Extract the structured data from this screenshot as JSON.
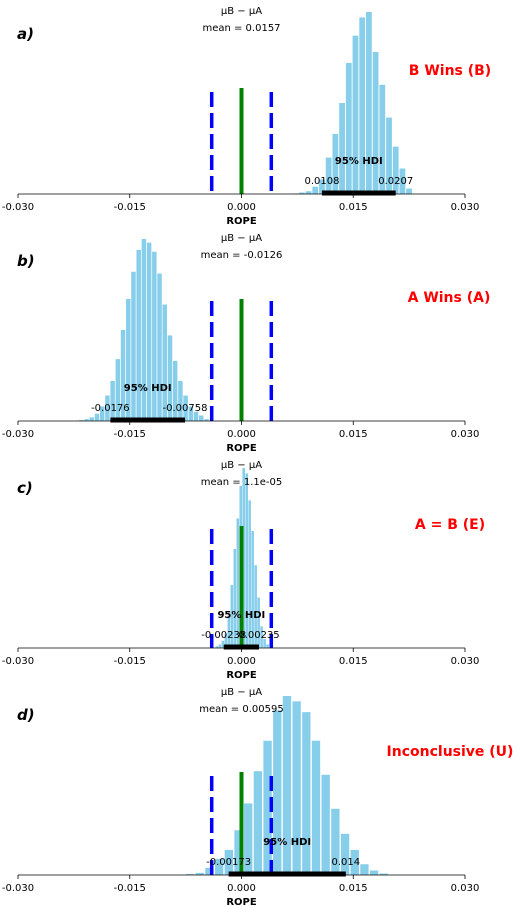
{
  "colors": {
    "bars": "#87CEEB",
    "rope": "#0000FF",
    "zero": "#008000",
    "hdi": "#000000",
    "verdict": "#FF0000"
  },
  "chart_data": [
    {
      "type": "bar",
      "panel_label": "a)",
      "title": "μB − μA",
      "subtitle": "mean = 0.0157",
      "xlabel": "ROPE",
      "xlim": [
        -0.03,
        0.03
      ],
      "xticks": [
        "-0.030",
        "-0.015",
        "0.000",
        "0.015",
        "0.030"
      ],
      "rope": [
        -0.004,
        0.004
      ],
      "zero_line": 0.0,
      "hdi_label": "95% HDI",
      "hdi": [
        0.0108,
        0.0207
      ],
      "hdi_low_label": "0.0108",
      "hdi_high_label": "0.0207",
      "verdict": "B Wins (B)",
      "hist": {
        "bin_centers": [
          0.0072,
          0.0081,
          0.009,
          0.0099,
          0.0108,
          0.0117,
          0.0126,
          0.0135,
          0.0144,
          0.0153,
          0.0162,
          0.0171,
          0.018,
          0.0189,
          0.0198,
          0.0207,
          0.0216,
          0.0225
        ],
        "heights": [
          0.3,
          0.8,
          1.5,
          4,
          8,
          20,
          33,
          50,
          72,
          87,
          97,
          100,
          78,
          60,
          42,
          26,
          14,
          3
        ]
      }
    },
    {
      "type": "bar",
      "panel_label": "b)",
      "title": "μB − μA",
      "subtitle": "mean = -0.0126",
      "xlabel": "ROPE",
      "xlim": [
        -0.03,
        0.03
      ],
      "xticks": [
        "-0.030",
        "-0.015",
        "0.000",
        "0.015",
        "0.030"
      ],
      "rope": [
        -0.004,
        0.004
      ],
      "zero_line": 0.0,
      "hdi_label": "95% HDI",
      "hdi": [
        -0.0176,
        -0.00758
      ],
      "hdi_low_label": "-0.0176",
      "hdi_high_label": "-0.00758",
      "verdict": "A Wins (A)",
      "hist": {
        "bin_centers": [
          -0.0215,
          -0.0208,
          -0.0201,
          -0.0194,
          -0.0187,
          -0.018,
          -0.0173,
          -0.0166,
          -0.0159,
          -0.0152,
          -0.0145,
          -0.0138,
          -0.0131,
          -0.0124,
          -0.0117,
          -0.011,
          -0.0103,
          -0.0096,
          -0.0089,
          -0.0082,
          -0.0075,
          -0.0068,
          -0.0061,
          -0.0054,
          -0.0047
        ],
        "heights": [
          0.5,
          1,
          2,
          4,
          8,
          14,
          22,
          34,
          50,
          67,
          82,
          94,
          100,
          98,
          93,
          81,
          64,
          47,
          33,
          22,
          14,
          8,
          5,
          3,
          1
        ]
      }
    },
    {
      "type": "bar",
      "panel_label": "c)",
      "title": "μB − μA",
      "subtitle": "mean = 1.1e-05",
      "xlabel": "ROPE",
      "xlim": [
        -0.03,
        0.03
      ],
      "xticks": [
        "-0.030",
        "-0.015",
        "0.000",
        "0.015",
        "0.030"
      ],
      "rope": [
        -0.004,
        0.004
      ],
      "zero_line": 0.0,
      "hdi_label": "95% HDI",
      "hdi": [
        -0.00238,
        0.00235
      ],
      "hdi_low_label": "-0.00238",
      "hdi_high_label": "0.00235",
      "verdict": "A = B (E)",
      "hist": {
        "bin_centers": [
          -0.0033,
          -0.0029,
          -0.0025,
          -0.0021,
          -0.0017,
          -0.0013,
          -0.0009,
          -0.0005,
          -0.0001,
          0.0003,
          0.0007,
          0.0011,
          0.0015,
          0.0019,
          0.0023,
          0.0027,
          0.0031,
          0.0035
        ],
        "heights": [
          1,
          2,
          4,
          8,
          17,
          35,
          55,
          72,
          90,
          100,
          97,
          82,
          65,
          46,
          28,
          12,
          5,
          2
        ]
      }
    },
    {
      "type": "bar",
      "panel_label": "d)",
      "title": "μB − μA",
      "subtitle": "mean = 0.00595",
      "xlabel": "ROPE",
      "xlim": [
        -0.03,
        0.03
      ],
      "xticks": [
        "-0.030",
        "-0.015",
        "0.000",
        "0.015",
        "0.030"
      ],
      "rope": [
        -0.004,
        0.004
      ],
      "zero_line": 0.0,
      "hdi_label": "95% HDI",
      "hdi": [
        -0.00173,
        0.014
      ],
      "hdi_low_label": "-0.00173",
      "hdi_high_label": "0.014",
      "verdict": "Inconclusive (U)",
      "hist": {
        "bin_centers": [
          -0.0069,
          -0.0056,
          -0.0043,
          -0.003,
          -0.0017,
          -0.0004,
          0.0009,
          0.0022,
          0.0035,
          0.0048,
          0.0061,
          0.0074,
          0.0087,
          0.01,
          0.0113,
          0.0126,
          0.0139,
          0.0152,
          0.0165,
          0.0178,
          0.0191
        ],
        "heights": [
          0.5,
          1.2,
          4,
          9,
          14,
          25,
          40,
          58,
          75,
          92,
          100,
          97,
          91,
          75,
          56,
          37,
          23,
          14,
          6,
          2.5,
          0.8
        ]
      }
    }
  ]
}
